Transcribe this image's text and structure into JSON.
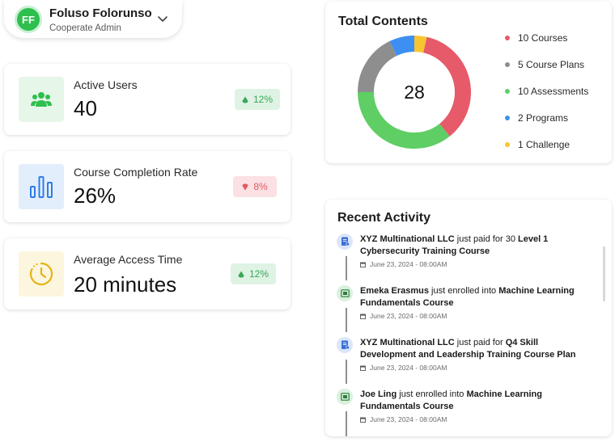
{
  "user": {
    "initials": "FF",
    "name": "Foluso Folorunso",
    "role": "Cooperate Admin"
  },
  "stats": [
    {
      "label": "Active Users",
      "value": "40",
      "change": "12%",
      "trend": "up",
      "icon": "users-icon",
      "icon_bg": "#e6f6e9",
      "icon_color": "#2fbf4f"
    },
    {
      "label": "Course Completion Rate",
      "value": "26%",
      "change": "8%",
      "trend": "down",
      "icon": "bar-chart-icon",
      "icon_bg": "#e3eefc",
      "icon_color": "#2f7ce8"
    },
    {
      "label": "Average Access Time",
      "value": "20 minutes",
      "change": "12%",
      "trend": "up",
      "icon": "clock-icon",
      "icon_bg": "#fdf6df",
      "icon_color": "#e6b311"
    }
  ],
  "total_contents": {
    "title": "Total Contents",
    "total": "28",
    "legend": [
      {
        "label": "10 Courses",
        "color": "#e65a6a"
      },
      {
        "label": "5 Course Plans",
        "color": "#8e8e8e"
      },
      {
        "label": "10 Assessments",
        "color": "#5fce64"
      },
      {
        "label": "2 Programs",
        "color": "#3d8ff2"
      },
      {
        "label": "1 Challenge",
        "color": "#f7c531"
      }
    ]
  },
  "chart_data": {
    "type": "pie",
    "categories": [
      "Courses",
      "Course Plans",
      "Assessments",
      "Programs",
      "Challenge"
    ],
    "values": [
      10,
      5,
      10,
      2,
      1
    ],
    "title": "Total Contents"
  },
  "recent_activity": {
    "title": "Recent Activity",
    "items": [
      {
        "type": "payment",
        "actor": "XYZ Multinational LLC",
        "action": " just paid for 30 ",
        "subject": "Level 1 Cybersecurity Training Course",
        "time": "June 23, 2024 - 08:00AM"
      },
      {
        "type": "enroll",
        "actor": "Emeka Erasmus",
        "action": " just enrolled into ",
        "subject": "Machine Learning Fundamentals Course",
        "time": "June 23, 2024 - 08:00AM"
      },
      {
        "type": "payment",
        "actor": "XYZ Multinational LLC",
        "action": " just paid for ",
        "subject": "Q4 Skill Development and Leadership Training Course Plan",
        "time": "June 23, 2024 - 08:00AM"
      },
      {
        "type": "enroll",
        "actor": "Joe Ling",
        "action": " just enrolled into ",
        "subject": "Machine Learning Fundamentals Course",
        "time": "June 23, 2024 - 08:00AM"
      }
    ]
  }
}
